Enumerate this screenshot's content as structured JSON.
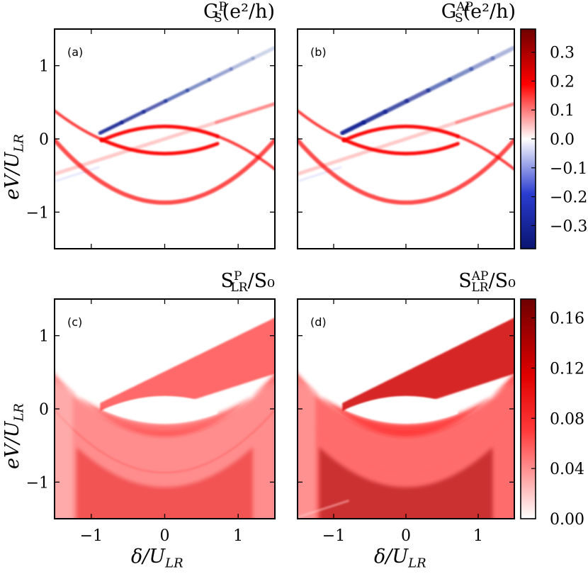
{
  "chart_data": {
    "type": "heatmap",
    "x_range": [
      -1.5,
      1.5
    ],
    "y_range": [
      -1.5,
      1.5
    ],
    "x_ticks": [
      "−1",
      "0",
      "1"
    ],
    "y_ticks": [
      "−1",
      "0",
      "1"
    ],
    "xlabel": {
      "base": "δ/U",
      "sub": "LR"
    },
    "ylabel": {
      "base": "eV/U",
      "sub": "LR"
    },
    "colors": {
      "blue": "#0a1f8f",
      "white": "#ffffff",
      "red": "#ff0000",
      "darkred": "#7a0000"
    },
    "panels": [
      {
        "id": "a",
        "label": "(a)",
        "title": {
          "base": "G",
          "sup": "P",
          "sub": "S",
          "unit": "(e²/h)"
        },
        "kind": "conductance"
      },
      {
        "id": "b",
        "label": "(b)",
        "title": {
          "base": "G",
          "sup": "AP",
          "sub": "S",
          "unit": "(e²/h)"
        },
        "kind": "conductance"
      },
      {
        "id": "c",
        "label": "(c)",
        "title": {
          "base": "S",
          "sup": "P",
          "sub": "LR",
          "unit": "/S₀"
        },
        "kind": "noise"
      },
      {
        "id": "d",
        "label": "(d)",
        "title": {
          "base": "S",
          "sup": "AP",
          "sub": "LR",
          "unit": "/S₀"
        },
        "kind": "noise"
      }
    ],
    "colorbar_top": {
      "range": [
        -0.38,
        0.38
      ],
      "ticks": [
        "0.3",
        "0.2",
        "0.1",
        "0.0",
        "−0.1",
        "−0.2",
        "−0.3"
      ],
      "tick_values": [
        0.3,
        0.2,
        0.1,
        0.0,
        -0.1,
        -0.2,
        -0.3
      ]
    },
    "colorbar_bottom": {
      "range": [
        0.0,
        0.175
      ],
      "ticks": [
        "0.16",
        "0.12",
        "0.08",
        "0.04",
        "0.00"
      ],
      "tick_values": [
        0.16,
        0.12,
        0.08,
        0.04,
        0.0
      ]
    },
    "features": {
      "upper_line": {
        "x_start": -0.88,
        "y_at_start": 0.08,
        "slope": 0.49
      },
      "lower_band": {
        "center": -0.87,
        "curvature": 0.38
      },
      "lens_upper": {
        "center": 0.17,
        "curvature": 0.26
      },
      "lens_lower": {
        "center": -0.2,
        "curvature": -0.26
      },
      "diagonal_weak": {
        "intercept": 0.0,
        "slope": 0.32
      }
    }
  }
}
